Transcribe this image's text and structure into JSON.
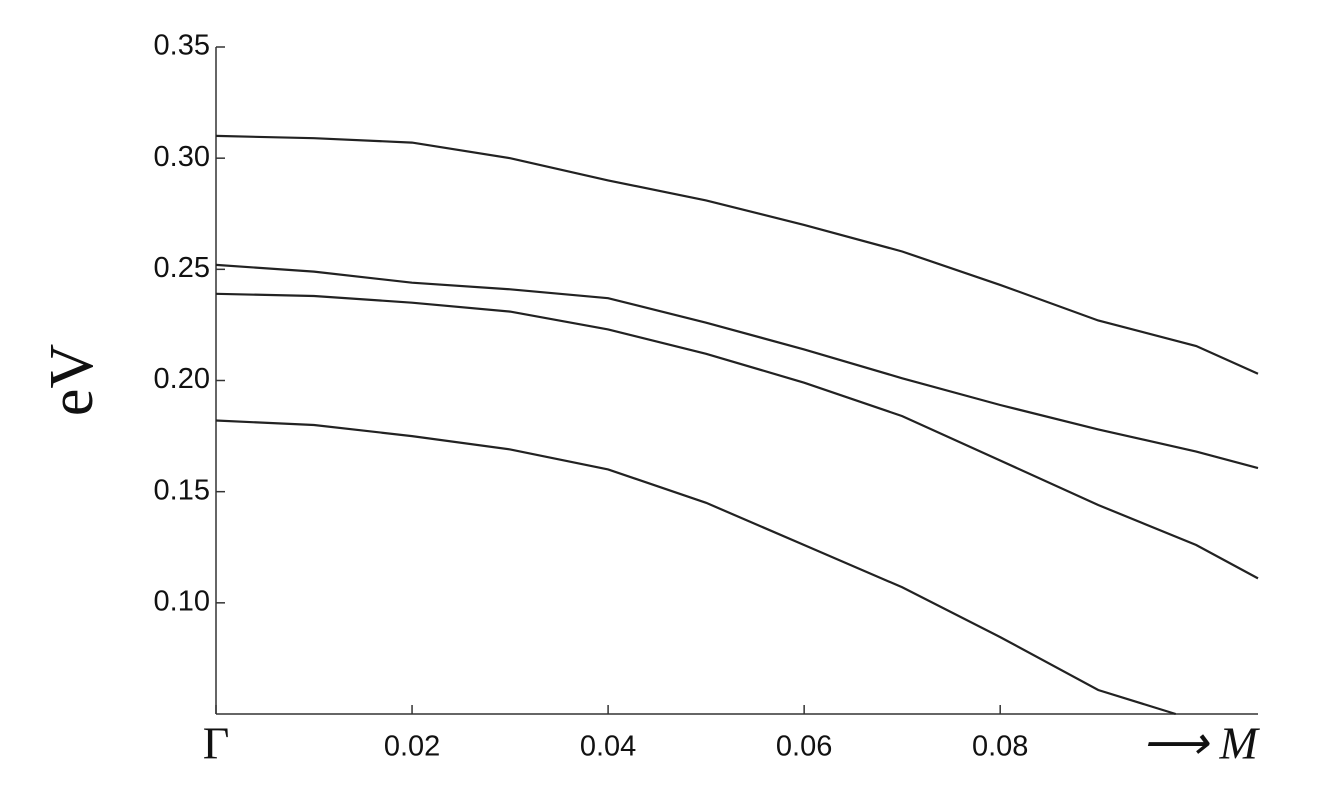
{
  "chart_data": {
    "type": "line",
    "ylabel": "eV",
    "xlabel": "⟶ M",
    "xlim": [
      0,
      0.1063
    ],
    "ylim": [
      0.05,
      0.35
    ],
    "xticks": [
      {
        "value": 0,
        "label": "Γ"
      },
      0.02,
      0.04,
      0.06,
      0.08
    ],
    "yticks": [
      {
        "value": 0.1,
        "label": "0.10"
      },
      0.15,
      {
        "value": 0.2,
        "label": "0.20"
      },
      0.25,
      {
        "value": 0.3,
        "label": "0.30"
      },
      0.35
    ],
    "series": [
      {
        "color": "#222222",
        "x": [
          0,
          0.01,
          0.02,
          0.03,
          0.04,
          0.05,
          0.06,
          0.07,
          0.08,
          0.09,
          0.1,
          0.1063
        ],
        "values": [
          0.31,
          0.309,
          0.307,
          0.3,
          0.29,
          0.281,
          0.27,
          0.258,
          0.243,
          0.227,
          0.2155,
          0.203
        ]
      },
      {
        "color": "#222222",
        "x": [
          0,
          0.01,
          0.02,
          0.03,
          0.04,
          0.05,
          0.06,
          0.07,
          0.08,
          0.09,
          0.1,
          0.1063
        ],
        "values": [
          0.252,
          0.249,
          0.244,
          0.241,
          0.237,
          0.226,
          0.214,
          0.201,
          0.189,
          0.178,
          0.168,
          0.1606
        ]
      },
      {
        "color": "#222222",
        "x": [
          0,
          0.01,
          0.02,
          0.03,
          0.04,
          0.05,
          0.06,
          0.07,
          0.08,
          0.09,
          0.1,
          0.1063
        ],
        "values": [
          0.239,
          0.238,
          0.235,
          0.231,
          0.223,
          0.212,
          0.199,
          0.184,
          0.164,
          0.144,
          0.126,
          0.111
        ]
      },
      {
        "color": "#222222",
        "x": [
          0,
          0.01,
          0.02,
          0.03,
          0.04,
          0.05,
          0.06,
          0.07,
          0.08,
          0.09,
          0.0979
        ],
        "values": [
          0.182,
          0.18,
          0.175,
          0.169,
          0.16,
          0.145,
          0.126,
          0.107,
          0.0846,
          0.0608,
          0.05
        ]
      }
    ]
  }
}
